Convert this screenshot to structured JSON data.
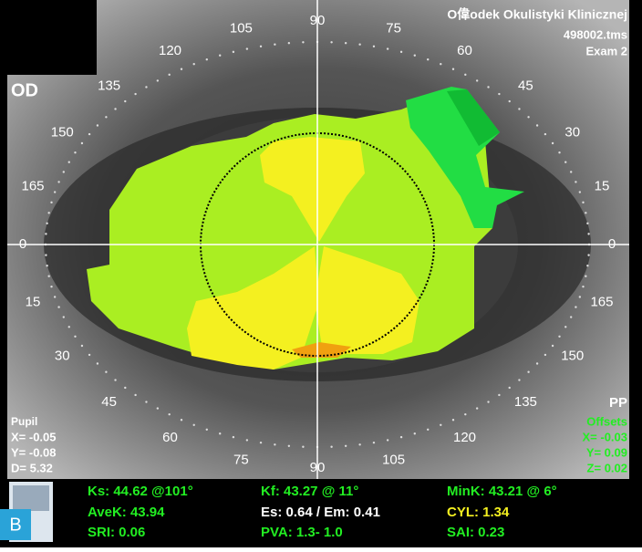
{
  "header": {
    "clinic": "O偉odek Okulistyki Klinicznej",
    "file": "498002.tms",
    "exam": "Exam 2"
  },
  "eye": "OD",
  "axis_labels": [
    0,
    15,
    30,
    45,
    60,
    75,
    90,
    105,
    120,
    135,
    150,
    165,
    0,
    15,
    30,
    45,
    60,
    75,
    90,
    105,
    120,
    135,
    150,
    165
  ],
  "pupil": {
    "title": "Pupil",
    "x": "X= -0.05",
    "y": "Y= -0.08",
    "d": "D= 5.32"
  },
  "offsets": {
    "tag": "PP",
    "title": "Offsets",
    "x": "X= -0.03",
    "y": "Y= 0.09",
    "z": "Z= 0.02"
  },
  "indices": {
    "ks": "Ks: 44.62 @101°",
    "kf": "Kf: 43.27 @ 11°",
    "mink": "MinK: 43.21 @  6°",
    "avek": "AveK: 43.94",
    "es_em": "Es: 0.64 / Em: 0.41",
    "cyl": "CYL:  1.34",
    "sri": "SRI: 0.06",
    "pva": "PVA:  1.3-  1.0",
    "sai": "SAI: 0.23"
  },
  "badge": "B"
}
